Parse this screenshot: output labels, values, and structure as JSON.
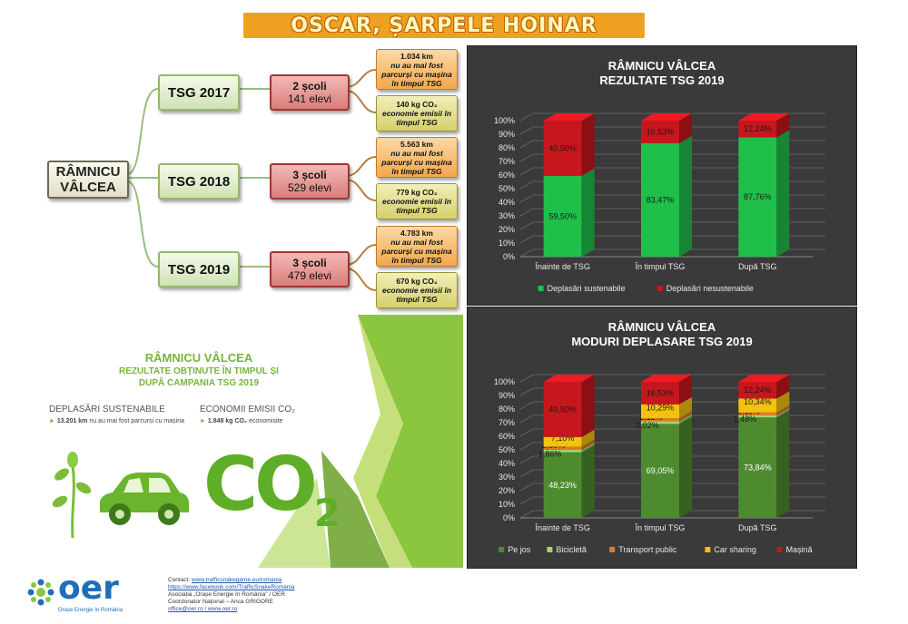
{
  "header": {
    "title": "OSCAR, ȘARPELE HOINAR"
  },
  "tree": {
    "root": {
      "line1": "RÂMNICU",
      "line2": "VÂLCEA"
    },
    "branches": [
      {
        "tsg": "TSG 2017",
        "schools": "2 școli",
        "students": "141 elevi",
        "km_value": "1.034 km",
        "km_desc": "nu au mai fost parcurși cu mașina în timpul TSG",
        "co2_value": "140 kg CO₂",
        "co2_desc": "economie emisii în timpul TSG"
      },
      {
        "tsg": "TSG 2018",
        "schools": "3 școli",
        "students": "529 elevi",
        "km_value": "5.563 km",
        "km_desc": "nu au mai fost parcurși cu mașina în timpul TSG",
        "co2_value": "779 kg CO₂",
        "co2_desc": "economie emisii în timpul TSG"
      },
      {
        "tsg": "TSG 2019",
        "schools": "3 școli",
        "students": "479 elevi",
        "km_value": "4.783 km",
        "km_desc": "nu au mai fost parcurși cu mașina în timpul TSG",
        "co2_value": "670 kg CO₂",
        "co2_desc": "economie emisii în timpul TSG"
      }
    ]
  },
  "promo": {
    "title": "RÂMNICU VÂLCEA",
    "subtitle_line1": "REZULTATE OBȚINUTE ÎN TIMPUL ȘI",
    "subtitle_line2": "DUPĂ CAMPANIA TSG 2019",
    "col1_head": "DEPLASĂRI SUSTENABILE",
    "col1_value": "13.201 km",
    "col1_text": "nu au mai fost parcurși cu mașina",
    "col2_head": "ECONOMII EMISII CO₂",
    "col2_value": "1.848 kg CO₂",
    "col2_text": "economisite",
    "co2_big": "CO",
    "co2_sub": "2"
  },
  "footer": {
    "logo_text": "oer",
    "logo_tagline": "Orașe Energie în România",
    "contact_label": "Contact:",
    "link1": "www.trafficsnakegame.eu/romania",
    "link2": "https://www.facebook.com/TrafficSnakeRomania",
    "line3": "Asociația „Orașe Energie în România” / OER",
    "line4": "Coordonator Național – Anca GRIGORE",
    "line5": "office@oer.ro / www.oer.ro"
  },
  "colors": {
    "green_bar": "#1fbf4a",
    "red_bar": "#c8161d",
    "pejos": "#4e8a2e",
    "bicicleta": "#a7d46f",
    "transport": "#e07b22",
    "carsharing": "#f4c20d",
    "masina": "#c8161d",
    "brand_green": "#78b43c",
    "oer_blue": "#1f6fb6"
  },
  "chart_data": [
    {
      "type": "bar",
      "stacked": true,
      "title": "RÂMNICU VÂLCEA",
      "subtitle": "REZULTATE TSG 2019",
      "categories": [
        "Înainte de TSG",
        "În timpul TSG",
        "După TSG"
      ],
      "series": [
        {
          "name": "Deplasări sustenabile",
          "values": [
            59.5,
            83.47,
            87.76
          ],
          "labels": [
            "59,50%",
            "83,47%",
            "87,76%"
          ]
        },
        {
          "name": "Deplasări nesustenabile",
          "values": [
            40.5,
            16.53,
            12.24
          ],
          "labels": [
            "40,50%",
            "16,53%",
            "12,24%"
          ]
        }
      ],
      "yticks": [
        "0%",
        "10%",
        "20%",
        "30%",
        "40%",
        "50%",
        "60%",
        "70%",
        "80%",
        "90%",
        "100%"
      ],
      "ylim": [
        0,
        100
      ],
      "legend": "bottom",
      "grid": true
    },
    {
      "type": "bar",
      "stacked": true,
      "title": "RÂMNICU VÂLCEA",
      "subtitle": "MODURI DEPLASARE TSG 2019",
      "categories": [
        "Înainte de TSG",
        "În timpul TSG",
        "După TSG"
      ],
      "series": [
        {
          "name": "Pe jos",
          "values": [
            48.23,
            69.05,
            73.84
          ],
          "labels": [
            "48,23%",
            "69,05%",
            "73,84%"
          ]
        },
        {
          "name": "Bicicletă",
          "values": [
            1.86,
            2.02,
            1.48
          ],
          "labels": [
            "1,86%",
            "2,02%",
            "1,48%"
          ]
        },
        {
          "name": "Transport public",
          "values": [
            2.3,
            2.12,
            2.11
          ],
          "labels": [
            "2,30%",
            "2,12%",
            "2,11%"
          ]
        },
        {
          "name": "Car sharing",
          "values": [
            7.1,
            10.29,
            10.34
          ],
          "labels": [
            "7,10%",
            "10,29%",
            "10,34%"
          ]
        },
        {
          "name": "Mașină",
          "values": [
            40.5,
            16.53,
            12.24
          ],
          "labels": [
            "40,50%",
            "16,53%",
            "12,24%"
          ]
        }
      ],
      "yticks": [
        "0%",
        "10%",
        "20%",
        "30%",
        "40%",
        "50%",
        "60%",
        "70%",
        "80%",
        "90%",
        "100%"
      ],
      "ylim": [
        0,
        100
      ],
      "legend": "bottom",
      "grid": true
    }
  ]
}
